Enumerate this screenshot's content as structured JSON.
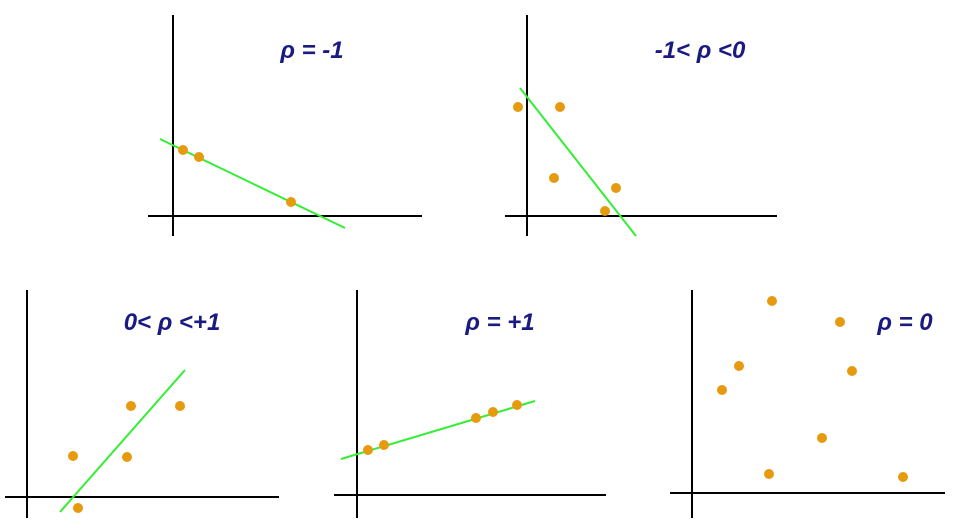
{
  "colors": {
    "axis": "#000000",
    "points": "#e69a0e",
    "trend_line": "#33ee33",
    "title": "#1a1a80"
  },
  "chart_data": [
    {
      "type": "scatter",
      "title": "ρ = -1",
      "points": [
        [
          0.9,
          2.5
        ],
        [
          1.6,
          2.2
        ],
        [
          7.0,
          0.5
        ]
      ],
      "trend_line": {
        "from": [
          -0.5,
          3.0
        ],
        "to": [
          8.5,
          -0.5
        ]
      }
    },
    {
      "type": "scatter",
      "title": "-1< ρ <0",
      "points": [
        [
          -0.5,
          6.0
        ],
        [
          1.8,
          6.0
        ],
        [
          1.5,
          2.0
        ],
        [
          5.0,
          0.2
        ],
        [
          5.6,
          1.5
        ]
      ],
      "trend_line": {
        "from": [
          -0.3,
          6.8
        ],
        "to": [
          6.0,
          -1.0
        ]
      }
    },
    {
      "type": "scatter",
      "title": "0< ρ <+1",
      "points": [
        [
          2.0,
          2.5
        ],
        [
          4.0,
          -0.6
        ],
        [
          5.5,
          0.2
        ],
        [
          5.7,
          5.5
        ],
        [
          8.2,
          5.5
        ]
      ],
      "trend_line": {
        "from": [
          1.5,
          -0.8
        ],
        "to": [
          8.5,
          8.5
        ]
      }
    },
    {
      "type": "scatter",
      "title": "ρ = +1",
      "points": [
        [
          0.5,
          2.0
        ],
        [
          1.3,
          2.5
        ],
        [
          6.0,
          4.5
        ],
        [
          6.7,
          4.8
        ],
        [
          8.0,
          5.0
        ]
      ],
      "trend_line": {
        "from": [
          -0.5,
          1.5
        ],
        "to": [
          9.0,
          5.5
        ]
      }
    },
    {
      "type": "scatter",
      "title": "ρ = 0",
      "points": [
        [
          1.2,
          5.0
        ],
        [
          2.0,
          6.0
        ],
        [
          3.5,
          9.5
        ],
        [
          3.3,
          1.0
        ],
        [
          6.5,
          7.0
        ],
        [
          6.0,
          4.0
        ],
        [
          7.2,
          5.5
        ],
        [
          8.8,
          1.0
        ]
      ]
    }
  ]
}
